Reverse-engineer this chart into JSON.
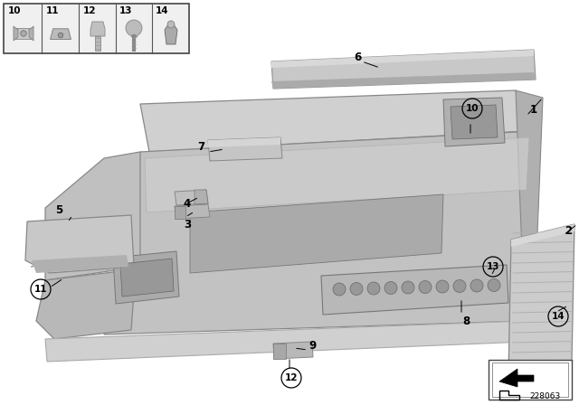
{
  "bg_color": "#ffffff",
  "diagram_number": "228063",
  "gray_light": "#c8c8c8",
  "gray_mid": "#b0b0b0",
  "gray_dark": "#909090",
  "gray_panel": "#c0c0c0",
  "edge_color": "#888888",
  "white": "#ffffff"
}
